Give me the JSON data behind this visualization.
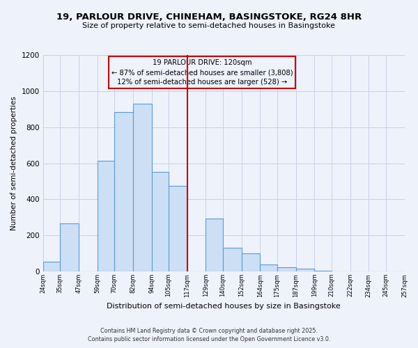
{
  "title": "19, PARLOUR DRIVE, CHINEHAM, BASINGSTOKE, RG24 8HR",
  "subtitle": "Size of property relative to semi-detached houses in Basingstoke",
  "xlabel": "Distribution of semi-detached houses by size in Basingstoke",
  "ylabel": "Number of semi-detached properties",
  "bar_edges": [
    24,
    35,
    47,
    59,
    70,
    82,
    94,
    105,
    117,
    129,
    140,
    152,
    164,
    175,
    187,
    199,
    210,
    222,
    234,
    245,
    257
  ],
  "bar_heights": [
    55,
    265,
    0,
    615,
    885,
    930,
    550,
    475,
    0,
    295,
    130,
    100,
    40,
    25,
    15,
    5,
    0,
    0,
    0,
    0
  ],
  "tick_labels": [
    "24sqm",
    "35sqm",
    "47sqm",
    "59sqm",
    "70sqm",
    "82sqm",
    "94sqm",
    "105sqm",
    "117sqm",
    "129sqm",
    "140sqm",
    "152sqm",
    "164sqm",
    "175sqm",
    "187sqm",
    "199sqm",
    "210sqm",
    "222sqm",
    "234sqm",
    "245sqm",
    "257sqm"
  ],
  "bar_facecolor": "#ccdff5",
  "bar_edgecolor": "#5b9bd5",
  "vline_x": 117,
  "vline_color": "#cc0000",
  "annotation_title": "19 PARLOUR DRIVE: 120sqm",
  "annotation_line1": "← 87% of semi-detached houses are smaller (3,808)",
  "annotation_line2": "12% of semi-detached houses are larger (528) →",
  "annotation_box_edgecolor": "#cc0000",
  "ylim": [
    0,
    1200
  ],
  "yticks": [
    0,
    200,
    400,
    600,
    800,
    1000,
    1200
  ],
  "background_color": "#eef2fb",
  "grid_color": "#c8d0e8",
  "footer1": "Contains HM Land Registry data © Crown copyright and database right 2025.",
  "footer2": "Contains public sector information licensed under the Open Government Licence v3.0."
}
